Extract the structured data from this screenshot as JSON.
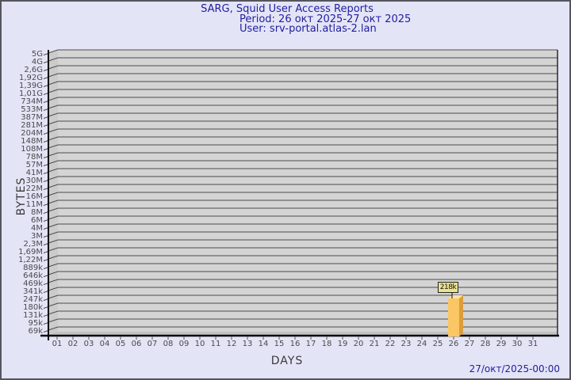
{
  "header": {
    "title": "SARG, Squid User Access Reports",
    "period": "Period: 26 окт 2025-27 окт 2025",
    "user": "User: srv-portal.atlas-2.lan"
  },
  "footer": {
    "timestamp": "27/окт/2025-00:00"
  },
  "chart_data": {
    "type": "bar",
    "title": "SARG, Squid User Access Reports",
    "subtitle_period": "Period: 26 окт 2025-27 окт 2025",
    "subtitle_user": "User: srv-portal.atlas-2.lan",
    "xlabel": "DAYS",
    "ylabel": "BYTES",
    "y_scale": "log",
    "x_ticks": [
      "01",
      "02",
      "03",
      "04",
      "05",
      "06",
      "07",
      "08",
      "09",
      "10",
      "11",
      "12",
      "13",
      "14",
      "15",
      "16",
      "17",
      "18",
      "19",
      "20",
      "21",
      "22",
      "23",
      "24",
      "25",
      "26",
      "27",
      "28",
      "29",
      "30",
      "31"
    ],
    "y_ticks_top_to_bottom": [
      "5G",
      "4G",
      "2,6G",
      "1,92G",
      "1,39G",
      "1,01G",
      "734M",
      "533M",
      "387M",
      "281M",
      "204M",
      "148M",
      "108M",
      "78M",
      "57M",
      "41M",
      "30M",
      "22M",
      "16M",
      "11M",
      "8M",
      "6M",
      "4M",
      "3M",
      "2,3M",
      "1,69M",
      "1,22M",
      "889k",
      "646k",
      "469k",
      "341k",
      "247k",
      "180k",
      "131k",
      "95k",
      "69k"
    ],
    "bars": [
      {
        "day": "26",
        "label": "218k"
      }
    ],
    "legend": "none",
    "grid": "horizontal",
    "colors": {
      "page_bg": "#e4e4f7",
      "frame_border": "#55555d",
      "title_text": "#20209e",
      "plot_bg": "#d4d4d4",
      "wall": "#cbcbcb",
      "floor": "#c2c2c2",
      "grid": "#4d4d4d",
      "axis": "#0a0a0a",
      "tick_text": "#4a4a4a",
      "bar_front": "#fbc764",
      "bar_side": "#dc9d3c",
      "bar_top": "#fde3a2",
      "label_box_bg": "#eae290",
      "timestamp_text": "#20209e"
    }
  }
}
